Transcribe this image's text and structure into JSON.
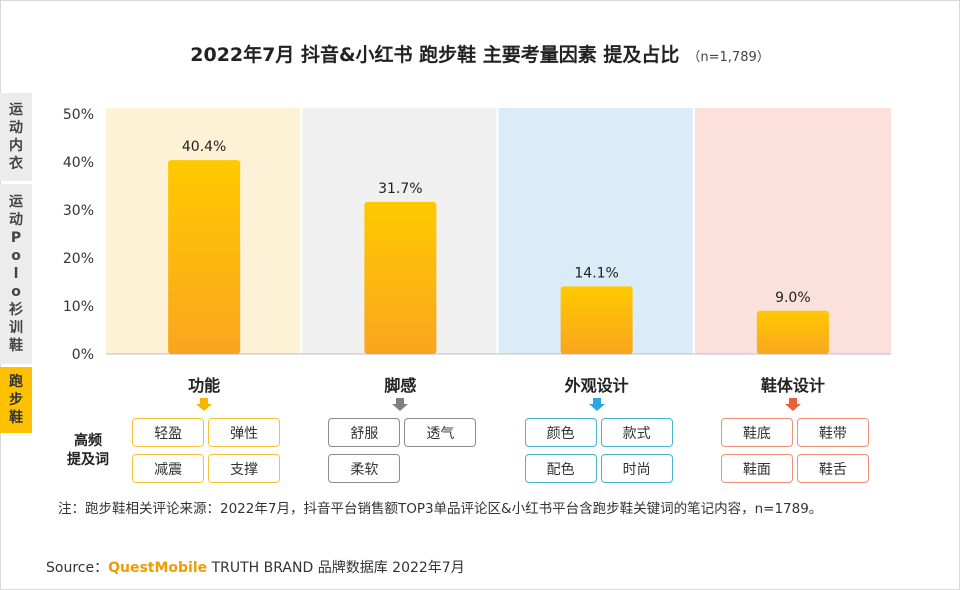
{
  "title": "2022年7月 抖音&小红书 跑步鞋 主要考量因素 提及占比",
  "subtitle": "（n=1,789）",
  "side_tabs": [
    {
      "label": "运动内衣",
      "active": false
    },
    {
      "label": "运动Polo衫训鞋",
      "active": false
    },
    {
      "label": "跑步鞋",
      "active": true
    }
  ],
  "chart_data": {
    "type": "bar",
    "categories": [
      "功能",
      "脚感",
      "外观设计",
      "鞋体设计"
    ],
    "values": [
      40.4,
      31.7,
      14.1,
      9.0
    ],
    "value_labels": [
      "40.4%",
      "31.7%",
      "14.1%",
      "9.0%"
    ],
    "y_ticks": [
      "0%",
      "10%",
      "20%",
      "30%",
      "40%",
      "50%"
    ],
    "ylim": [
      0,
      50
    ],
    "grid": false,
    "bar_gradient": [
      "#ffc900",
      "#f9a61e"
    ],
    "section_colors": [
      "#fdf2d5",
      "#f0f0f0",
      "#d9ecf7",
      "#fbe0dc"
    ],
    "category_arrow_colors": [
      "#f7b500",
      "#808080",
      "#2ca6df",
      "#e8613c"
    ]
  },
  "keywords_label": "高频提及词",
  "keywords": [
    {
      "color": "#f7c23a",
      "items": [
        "轻盈",
        "弹性",
        "减震",
        "支撑"
      ]
    },
    {
      "color": "#8c8c8c",
      "items": [
        "舒服",
        "透气",
        "柔软"
      ]
    },
    {
      "color": "#49b5c9",
      "items": [
        "颜色",
        "款式",
        "配色",
        "时尚"
      ]
    },
    {
      "color": "#f0907a",
      "items": [
        "鞋底",
        "鞋带",
        "鞋面",
        "鞋舌"
      ]
    }
  ],
  "note": "注：跑步鞋相关评论来源：2022年7月，抖音平台销售额TOP3单品评论区&小红书平台含跑步鞋关键词的笔记内容，n=1789。",
  "source": {
    "prefix": "Source：",
    "brand": "QuestMobile",
    "rest": " TRUTH BRAND 品牌数据库 2022年7月"
  }
}
